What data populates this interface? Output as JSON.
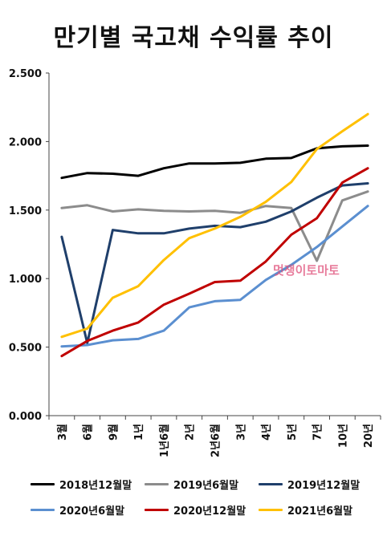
{
  "chart_data": {
    "type": "line",
    "title": "만기별 국고채 수익률 추이",
    "categories": [
      "3월",
      "6월",
      "9월",
      "1년",
      "1년6월",
      "2년",
      "2년6월",
      "3년",
      "4년",
      "5년",
      "7년",
      "10년",
      "20년"
    ],
    "ylim": [
      0.0,
      2.5
    ],
    "yticks": [
      "0.000",
      "0.500",
      "1.000",
      "1.500",
      "2.000",
      "2.500"
    ],
    "grid": false,
    "legend": "bottom",
    "series": [
      {
        "name": "2018년12월말",
        "color": "#000000",
        "values": [
          1.735,
          1.77,
          1.765,
          1.75,
          1.805,
          1.84,
          1.84,
          1.845,
          1.875,
          1.88,
          1.95,
          1.965,
          1.97
        ]
      },
      {
        "name": "2019년6월말",
        "color": "#8c8c8c",
        "values": [
          1.515,
          1.535,
          1.49,
          1.505,
          1.495,
          1.49,
          1.495,
          1.48,
          1.53,
          1.515,
          1.13,
          1.57,
          1.635
        ]
      },
      {
        "name": "2019년12월말",
        "color": "#1f3f6b",
        "values": [
          1.305,
          0.53,
          1.355,
          1.33,
          1.33,
          1.365,
          1.385,
          1.375,
          1.415,
          1.49,
          1.59,
          1.68,
          1.695
        ]
      },
      {
        "name": "2020년6월말",
        "color": "#5b8fd0",
        "values": [
          0.505,
          0.515,
          0.55,
          0.56,
          0.62,
          0.79,
          0.835,
          0.845,
          0.99,
          1.1,
          1.23,
          1.38,
          1.53
        ]
      },
      {
        "name": "2020년12월말",
        "color": "#c00000",
        "values": [
          0.435,
          0.545,
          0.62,
          0.68,
          0.81,
          0.89,
          0.975,
          0.985,
          1.125,
          1.32,
          1.44,
          1.7,
          1.805
        ]
      },
      {
        "name": "2021년6월말",
        "color": "#ffc000",
        "values": [
          0.575,
          0.635,
          0.86,
          0.945,
          1.135,
          1.295,
          1.365,
          1.45,
          1.56,
          1.705,
          1.945,
          2.075,
          2.2
        ]
      }
    ],
    "watermark": "멋쟁이토마토"
  }
}
